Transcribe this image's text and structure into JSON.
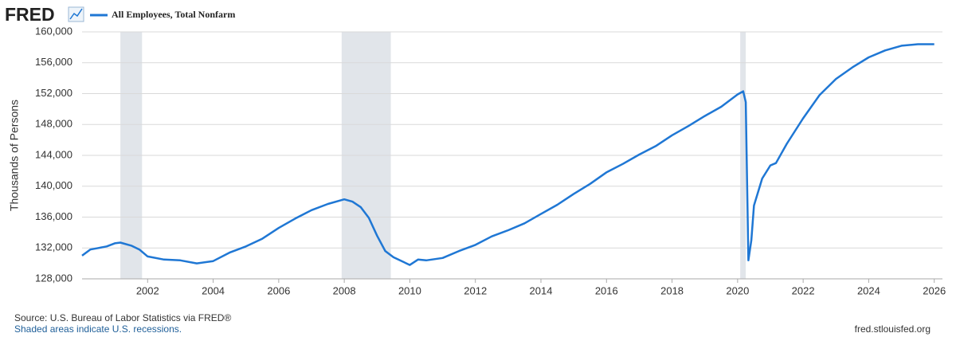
{
  "chart_data": {
    "type": "line",
    "logo": "FRED",
    "ylabel": "Thousands of Persons",
    "source": "Source: U.S. Bureau of Labor Statistics via FRED®",
    "note": "Shaded areas indicate U.S. recessions.",
    "url": "fred.stlouisfed.org",
    "xlim": [
      2000,
      2026.25
    ],
    "ylim": [
      128000,
      160000
    ],
    "xticks": [
      2002,
      2004,
      2006,
      2008,
      2010,
      2012,
      2014,
      2016,
      2018,
      2020,
      2022,
      2024,
      2026
    ],
    "yticks": [
      {
        "value": 128000,
        "label": "128,000"
      },
      {
        "value": 132000,
        "label": "132,000"
      },
      {
        "value": 136000,
        "label": "136,000"
      },
      {
        "value": 140000,
        "label": "140,000"
      },
      {
        "value": 144000,
        "label": "144,000"
      },
      {
        "value": 148000,
        "label": "148,000"
      },
      {
        "value": 152000,
        "label": "152,000"
      },
      {
        "value": 156000,
        "label": "156,000"
      },
      {
        "value": 160000,
        "label": "160,000"
      }
    ],
    "grid": true,
    "recessions": [
      [
        2001.17,
        2001.83
      ],
      [
        2007.92,
        2009.42
      ],
      [
        2020.08,
        2020.25
      ]
    ],
    "recession_color": "#e1e5ea",
    "x": [
      2000.0,
      2000.25,
      2000.5,
      2000.75,
      2001.0,
      2001.17,
      2001.5,
      2001.75,
      2002.0,
      2002.5,
      2003.0,
      2003.5,
      2004.0,
      2004.5,
      2005.0,
      2005.5,
      2006.0,
      2006.5,
      2007.0,
      2007.5,
      2008.0,
      2008.25,
      2008.5,
      2008.75,
      2009.0,
      2009.25,
      2009.5,
      2010.0,
      2010.25,
      2010.5,
      2011.0,
      2011.5,
      2012.0,
      2012.5,
      2013.0,
      2013.5,
      2014.0,
      2014.5,
      2015.0,
      2015.5,
      2016.0,
      2016.5,
      2017.0,
      2017.5,
      2018.0,
      2018.5,
      2019.0,
      2019.5,
      2020.0,
      2020.17,
      2020.25,
      2020.33,
      2020.42,
      2020.5,
      2020.75,
      2021.0,
      2021.17,
      2021.5,
      2022.0,
      2022.5,
      2023.0,
      2023.5,
      2024.0,
      2024.5,
      2025.0,
      2025.5,
      2026.0
    ],
    "series": [
      {
        "name": "All Employees, Total Nonfarm",
        "color": "#1f77d4",
        "values": [
          131000,
          131800,
          132000,
          132200,
          132600,
          132700,
          132300,
          131800,
          130900,
          130500,
          130400,
          130000,
          130300,
          131400,
          132200,
          133200,
          134600,
          135800,
          136900,
          137700,
          138300,
          138000,
          137300,
          135900,
          133600,
          131600,
          130800,
          129800,
          130500,
          130400,
          130700,
          131600,
          132400,
          133500,
          134300,
          135200,
          136400,
          137600,
          139000,
          140300,
          141800,
          142900,
          144100,
          145200,
          146600,
          147800,
          149100,
          150300,
          151900,
          152300,
          150900,
          130400,
          133000,
          137500,
          141000,
          142700,
          143000,
          145500,
          148800,
          151800,
          153900,
          155400,
          156700,
          157600,
          158200,
          158400,
          158400
        ]
      }
    ]
  }
}
